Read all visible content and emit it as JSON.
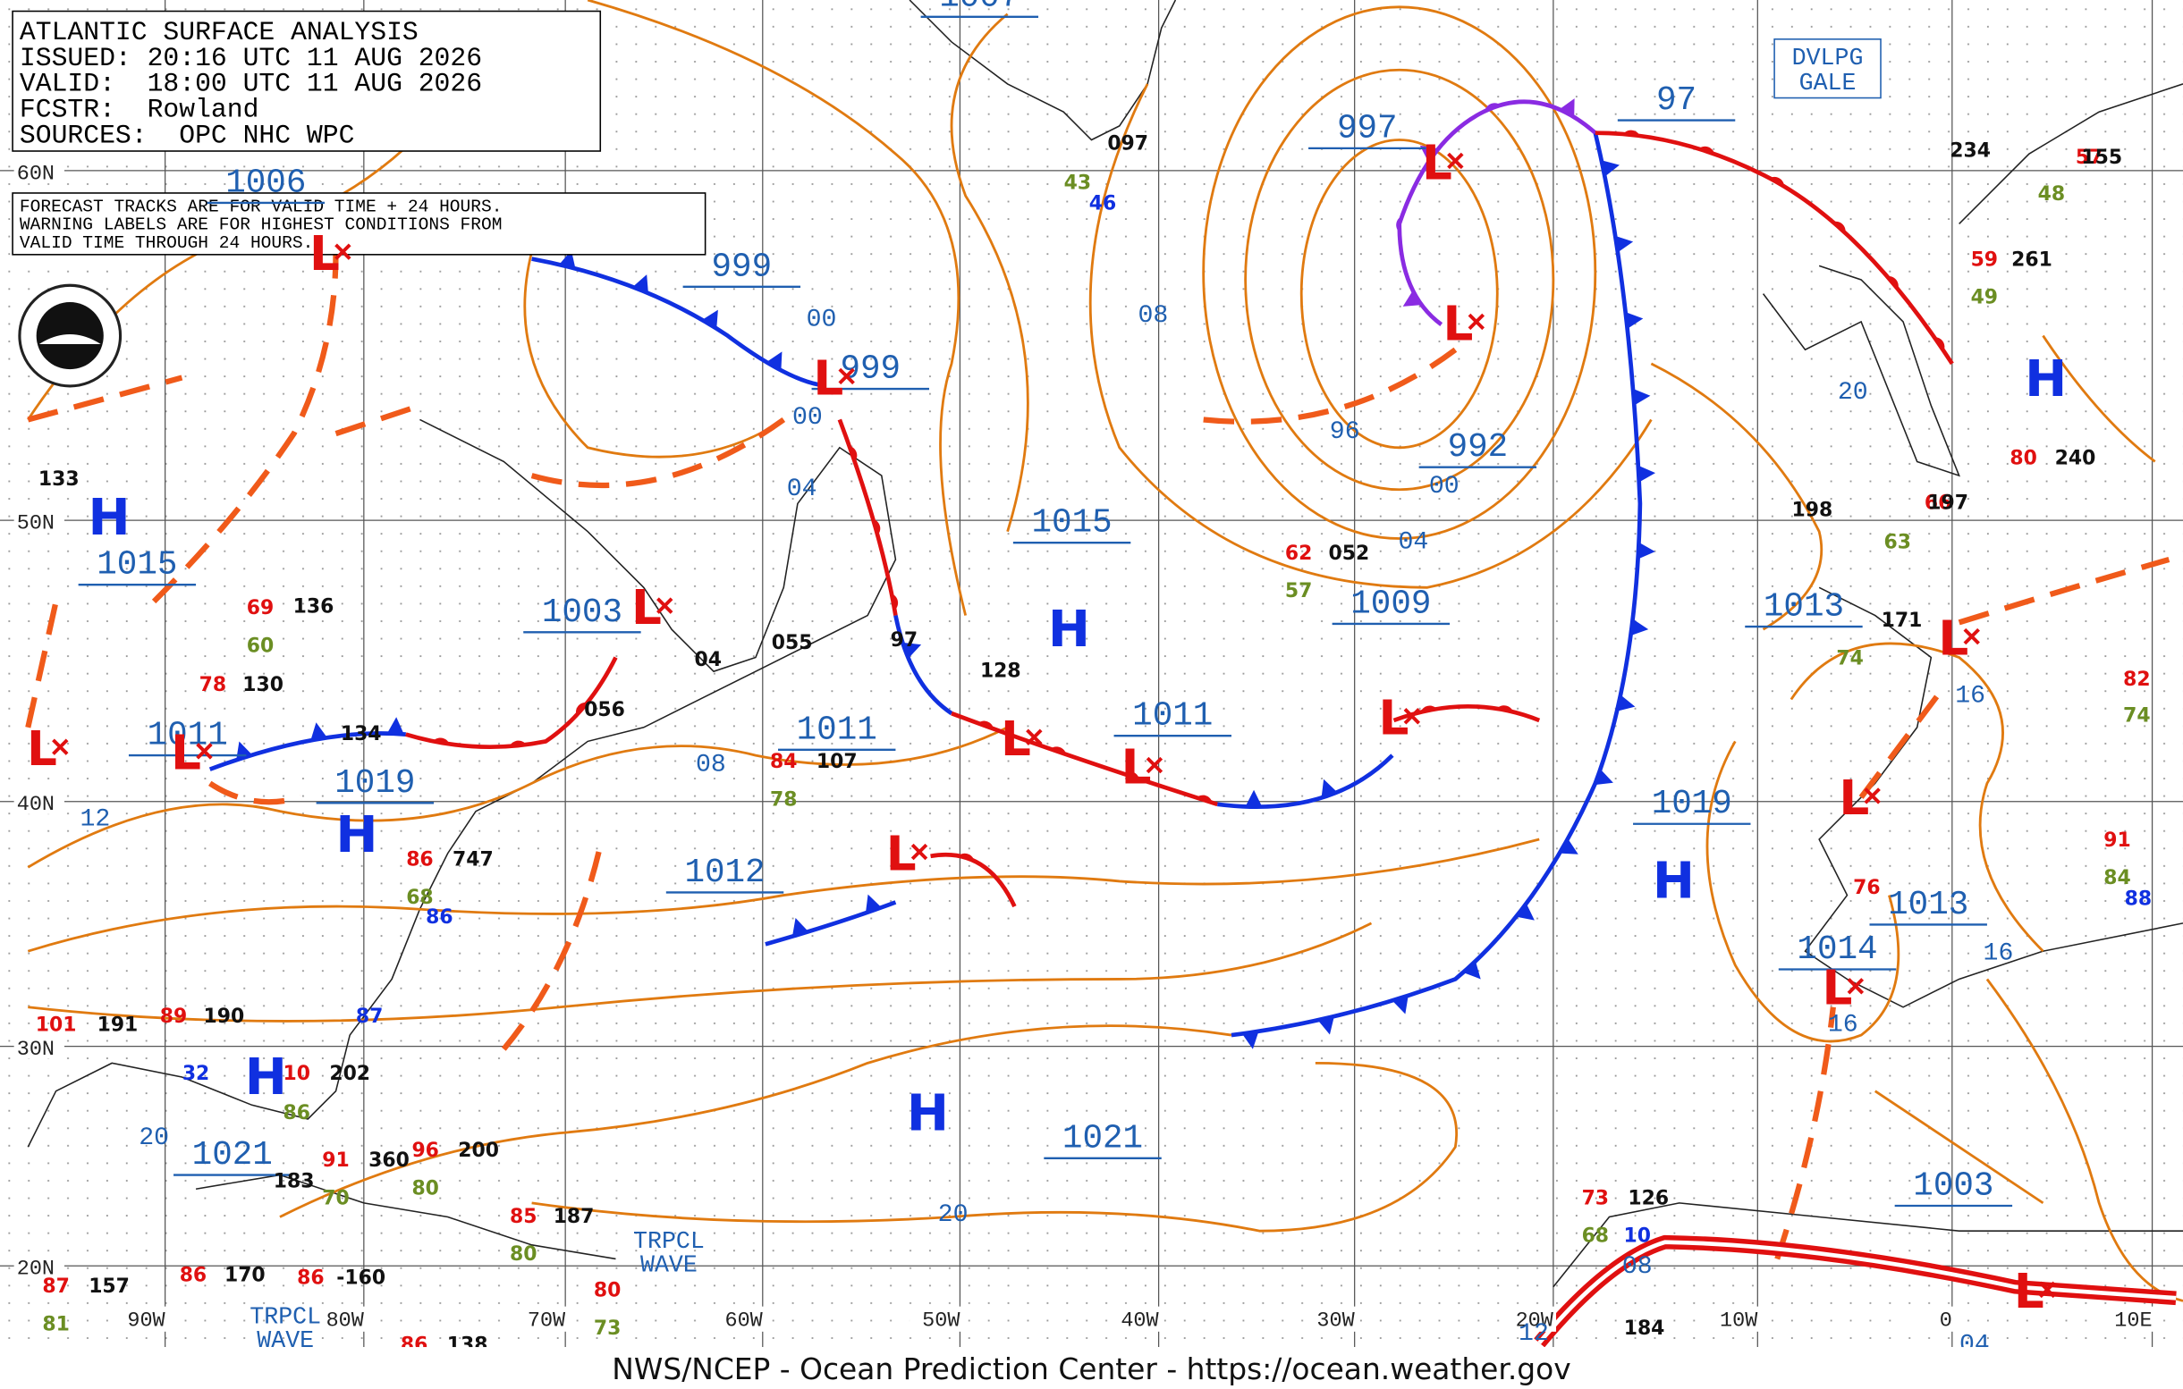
{
  "header": {
    "lines": [
      "ATLANTIC SURFACE ANALYSIS",
      "ISSUED: 20:16 UTC 11 AUG 2026",
      "VALID:  18:00 UTC 11 AUG 2026",
      "FCSTR:  Rowland",
      "SOURCES:  OPC NHC WPC"
    ]
  },
  "note": {
    "lines": [
      "FORECAST TRACKS ARE FOR VALID TIME + 24 HOURS.",
      "WARNING LABELS ARE FOR HIGHEST CONDITIONS FROM",
      "VALID TIME THROUGH 24 HOURS."
    ]
  },
  "latitude_labels": [
    "60N",
    "50N",
    "40N",
    "30N",
    "20N"
  ],
  "longitude_labels": [
    "90W",
    "80W",
    "70W",
    "60W",
    "50W",
    "40W",
    "30W",
    "20W",
    "10W",
    "0",
    "10E"
  ],
  "pressure_labels": [
    "1007",
    "1006",
    "997",
    "97",
    "999",
    "999",
    "992",
    "1015",
    "1015",
    "1003",
    "1009",
    "1013",
    "1011",
    "1011",
    "1011",
    "1019",
    "1019",
    "1012",
    "1013",
    "1014",
    "1021",
    "1021",
    "1003"
  ],
  "isobar_labels": [
    "08",
    "96",
    "00",
    "04",
    "00",
    "00",
    "04",
    "08",
    "12",
    "16",
    "16",
    "16",
    "20",
    "20",
    "20",
    "08",
    "12",
    "04"
  ],
  "highs": [
    "H",
    "H",
    "H",
    "H",
    "H",
    "H",
    "H"
  ],
  "lows": [
    "L",
    "L",
    "L",
    "L",
    "L",
    "L",
    "L",
    "L",
    "L",
    "L",
    "L",
    "L",
    "L",
    "L",
    "L"
  ],
  "warning_label": [
    "DVLPG",
    "GALE"
  ],
  "tropical_waves": [
    [
      "TRPCL",
      "WAVE"
    ],
    [
      "TRPCL",
      "WAVE"
    ]
  ],
  "stations": [
    "133",
    "69",
    "136",
    "60",
    "130",
    "78",
    "134",
    "056",
    "055",
    "04",
    "97",
    "128",
    "107",
    "84",
    "78",
    "052",
    "62",
    "57",
    "097",
    "43",
    "46",
    "234",
    "57",
    "155",
    "48",
    "59",
    "261",
    "49",
    "240",
    "80",
    "198",
    "66",
    "197",
    "63",
    "171",
    "74",
    "82",
    "74",
    "91",
    "84",
    "88",
    "76",
    "747",
    "86",
    "68",
    "86",
    "87",
    "101",
    "191",
    "89",
    "190",
    "32",
    "10",
    "202",
    "86",
    "91",
    "360",
    "70",
    "96",
    "200",
    "80",
    "183",
    "85",
    "187",
    "80",
    "73",
    "126",
    "68",
    "10",
    "184",
    "157",
    "87",
    "81",
    "86",
    "170",
    "86",
    "-160",
    "80",
    "73",
    "86",
    "138"
  ],
  "footer": "NWS/NCEP - Ocean Prediction Center - https://ocean.weather.gov"
}
